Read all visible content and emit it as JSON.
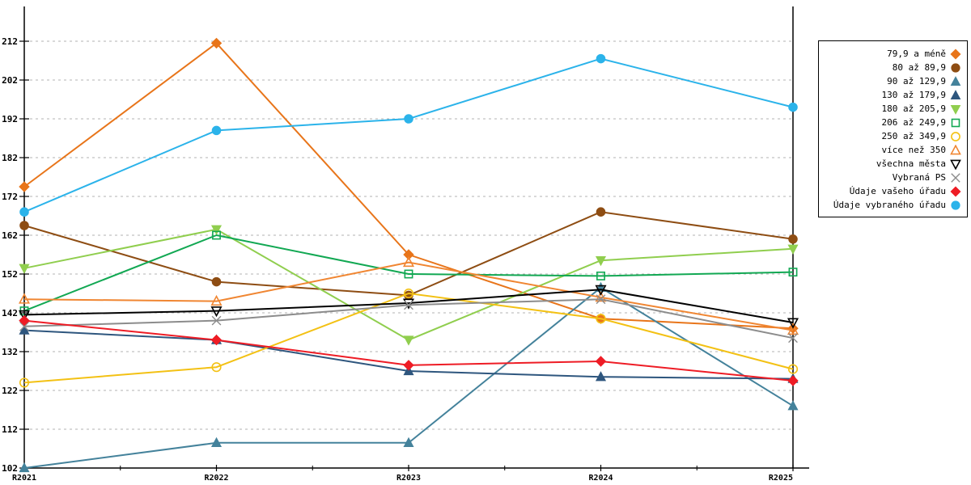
{
  "chart_data": {
    "type": "line",
    "categories": [
      "R2021",
      "R2022",
      "R2023",
      "R2024",
      "R2025"
    ],
    "ylim": [
      102,
      212
    ],
    "ytick_step": 10,
    "yticks": [
      102,
      112,
      122,
      132,
      142,
      152,
      162,
      172,
      182,
      192,
      202,
      212
    ],
    "grid": "horizontal-dashed",
    "legend_position": "right-outside-box",
    "axis_color": "#000000",
    "grid_color": "#b3b3b3",
    "background_color": "#ffffff",
    "series": [
      {
        "name": "79,9 a méně",
        "color": "#e8751a",
        "marker": "diamond",
        "fill": "solid",
        "values": [
          174.5,
          211.5,
          157,
          140.5,
          138
        ]
      },
      {
        "name": "80 až 89,9",
        "color": "#8e4d13",
        "marker": "circle",
        "fill": "solid",
        "values": [
          164.5,
          150,
          146.5,
          168,
          161
        ]
      },
      {
        "name": "90 až 129,9",
        "color": "#44829b",
        "marker": "triangle-up",
        "fill": "solid",
        "values": [
          102,
          108.5,
          108.5,
          148.5,
          118
        ]
      },
      {
        "name": "130 až 179,9",
        "color": "#2e567e",
        "marker": "triangle-up",
        "fill": "solid",
        "values": [
          137.5,
          135,
          127,
          125.5,
          125
        ]
      },
      {
        "name": "180 až 205,9",
        "color": "#90ce4e",
        "marker": "triangle-down",
        "fill": "solid",
        "values": [
          153.5,
          163.5,
          135,
          155.5,
          158.5
        ]
      },
      {
        "name": "206 až 249,9",
        "color": "#12a853",
        "marker": "square",
        "fill": "open",
        "values": [
          142.5,
          162,
          152,
          151.5,
          152.5
        ]
      },
      {
        "name": "250 až 349,9",
        "color": "#f3c114",
        "marker": "circle",
        "fill": "open",
        "values": [
          124,
          128,
          147,
          140.5,
          127.5
        ]
      },
      {
        "name": "více než 350",
        "color": "#f08632",
        "marker": "triangle-up",
        "fill": "open",
        "values": [
          145.5,
          145,
          155,
          146,
          137.5
        ]
      },
      {
        "name": "všechna města",
        "color": "#000000",
        "marker": "triangle-down",
        "fill": "open",
        "values": [
          141.5,
          142.5,
          144.5,
          148,
          139.5
        ]
      },
      {
        "name": "Vybraná PS",
        "color": "#8c8c8c",
        "marker": "x",
        "fill": "open",
        "values": [
          138.5,
          140,
          144,
          145.5,
          135.5
        ]
      },
      {
        "name": "Údaje vašeho úřadu",
        "color": "#ee1c25",
        "marker": "diamond",
        "fill": "solid",
        "values": [
          140,
          135,
          128.5,
          129.5,
          124.5
        ]
      },
      {
        "name": "Údaje vybraného úřadu",
        "color": "#2bb3ea",
        "marker": "circle",
        "fill": "solid",
        "values": [
          168,
          189,
          192,
          207.5,
          195
        ]
      }
    ]
  }
}
